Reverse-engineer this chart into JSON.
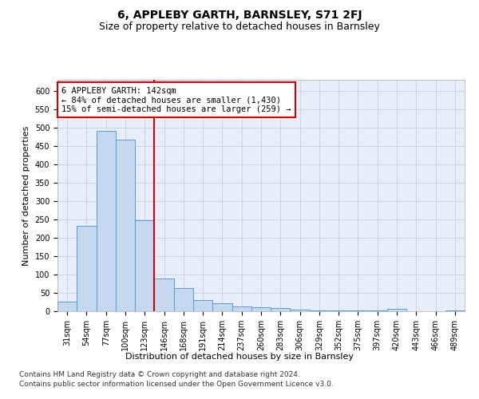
{
  "title": "6, APPLEBY GARTH, BARNSLEY, S71 2FJ",
  "subtitle": "Size of property relative to detached houses in Barnsley",
  "xlabel": "Distribution of detached houses by size in Barnsley",
  "ylabel": "Number of detached properties",
  "footnote1": "Contains HM Land Registry data © Crown copyright and database right 2024.",
  "footnote2": "Contains public sector information licensed under the Open Government Licence v3.0.",
  "categories": [
    "31sqm",
    "54sqm",
    "77sqm",
    "100sqm",
    "123sqm",
    "146sqm",
    "168sqm",
    "191sqm",
    "214sqm",
    "237sqm",
    "260sqm",
    "283sqm",
    "306sqm",
    "329sqm",
    "352sqm",
    "375sqm",
    "397sqm",
    "420sqm",
    "443sqm",
    "466sqm",
    "489sqm"
  ],
  "values": [
    25,
    232,
    490,
    468,
    248,
    88,
    62,
    30,
    22,
    13,
    10,
    8,
    4,
    3,
    2,
    2,
    2,
    6,
    1,
    1,
    3
  ],
  "bar_color": "#c5d8f0",
  "bar_edge_color": "#5b9bd5",
  "vline_x": 4.5,
  "vline_color": "#cc0000",
  "annotation_title": "6 APPLEBY GARTH: 142sqm",
  "annotation_line1": "← 84% of detached houses are smaller (1,430)",
  "annotation_line2": "15% of semi-detached houses are larger (259) →",
  "annotation_box_color": "#ffffff",
  "annotation_box_edge": "#cc0000",
  "ylim": [
    0,
    630
  ],
  "yticks": [
    0,
    50,
    100,
    150,
    200,
    250,
    300,
    350,
    400,
    450,
    500,
    550,
    600
  ],
  "grid_color": "#c8d4e8",
  "background_color": "#e8eef7",
  "title_fontsize": 10,
  "subtitle_fontsize": 9,
  "axis_label_fontsize": 8,
  "tick_fontsize": 7,
  "annotation_fontsize": 7.5,
  "footnote_fontsize": 6.5
}
